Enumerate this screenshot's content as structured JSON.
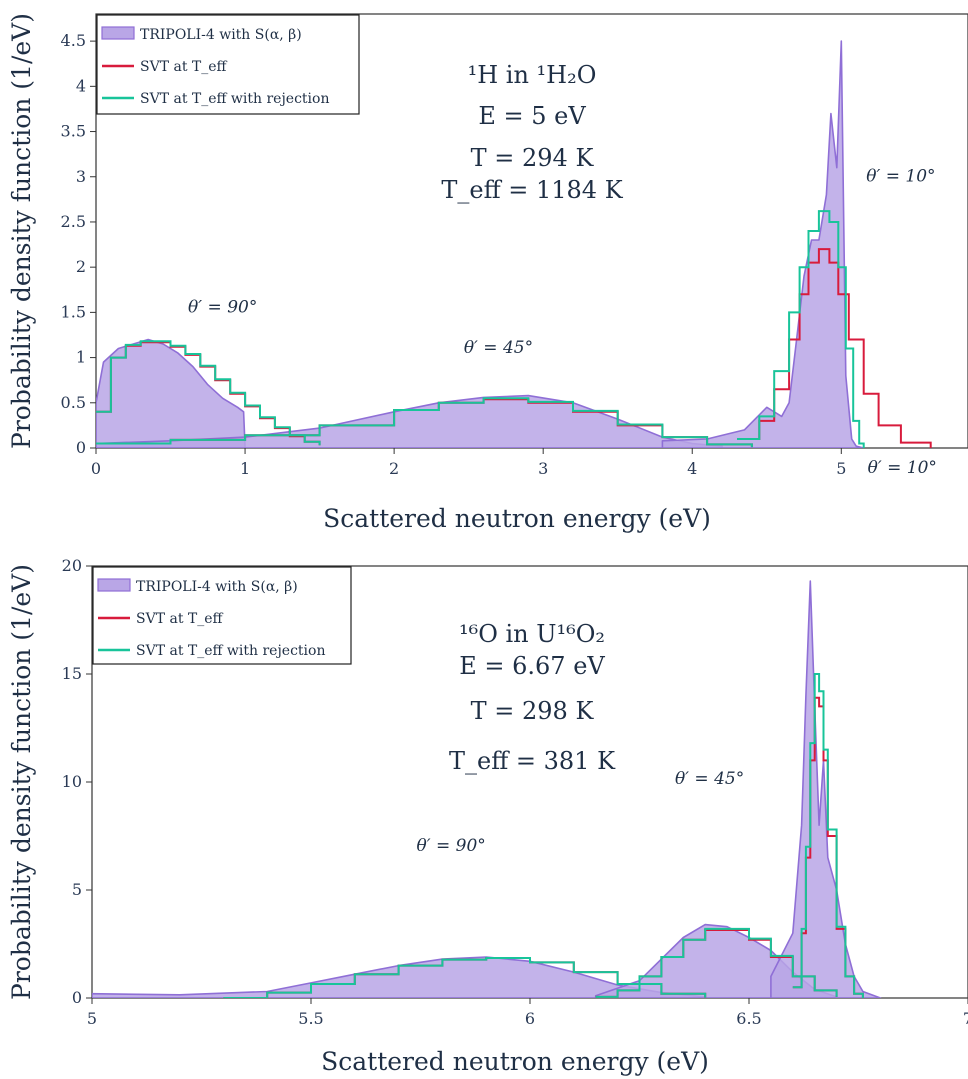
{
  "colors": {
    "tripoli_fill": "#b9a6e6",
    "tripoli_line": "#8f6fd6",
    "svt": "#d81b3c",
    "svt_rej": "#18c49a",
    "text": "#1f2f45"
  },
  "chart_data": [
    {
      "type": "area",
      "panel": "top",
      "xlabel": "Scattered neutron energy (eV)",
      "ylabel": "Probability density function (1/eV)",
      "xlim": [
        0,
        5.85
      ],
      "ylim": [
        0,
        4.8
      ],
      "xticks": [
        0,
        1,
        2,
        3,
        4,
        5
      ],
      "xtick_labels": [
        "0",
        "1",
        "2",
        "3",
        "4",
        "5"
      ],
      "yticks": [
        0,
        0.5,
        1,
        1.5,
        2,
        2.5,
        3,
        3.5,
        4,
        4.5
      ],
      "ytick_labels": [
        "0",
        "0.5",
        "1",
        "1.5",
        "2",
        "2.5",
        "3",
        "3.5",
        "4",
        "4.5"
      ],
      "grid": false,
      "legend_position": "top-left",
      "legend": [
        "TRIPOLI-4 with S(α, β)",
        "SVT at T_eff",
        "SVT at T_eff with rejection"
      ],
      "info_lines": [
        "¹H in ¹H₂O",
        "E = 5 eV",
        "T = 294 K",
        "T_eff = 1184 K"
      ],
      "annotations": [
        {
          "text": "θ′ = 90°",
          "x": 0.85,
          "y": 1.5
        },
        {
          "text": "θ′ = 45°",
          "x": 2.7,
          "y": 1.05
        },
        {
          "text": "θ′ = 10°",
          "x": 5.4,
          "y": 2.95
        }
      ],
      "series": [
        {
          "name": "TRIPOLI-4 with S(α, β)",
          "style": "filled",
          "components": [
            {
              "angle": "θ′ = 90°",
              "x": [
                0,
                0.05,
                0.15,
                0.25,
                0.35,
                0.45,
                0.55,
                0.65,
                0.75,
                0.85,
                0.95,
                0.99,
                1.0,
                1.02
              ],
              "y": [
                0.5,
                0.95,
                1.1,
                1.15,
                1.2,
                1.15,
                1.05,
                0.9,
                0.7,
                0.55,
                0.45,
                0.4,
                0.0,
                0.0
              ]
            },
            {
              "angle": "θ′ = 45°",
              "x": [
                0,
                0.5,
                1.0,
                1.5,
                2.0,
                2.3,
                2.6,
                2.9,
                3.2,
                3.5,
                3.8,
                4.0,
                4.2
              ],
              "y": [
                0.05,
                0.08,
                0.12,
                0.22,
                0.4,
                0.5,
                0.56,
                0.58,
                0.5,
                0.32,
                0.12,
                0.05,
                0.02
              ]
            },
            {
              "angle": "θ′ = 10°",
              "x": [
                3.8,
                4.1,
                4.35,
                4.5,
                4.6,
                4.65,
                4.7,
                4.75,
                4.8,
                4.85,
                4.9,
                4.93,
                4.97,
                5.0,
                5.03,
                5.07,
                5.1,
                5.15
              ],
              "y": [
                0.08,
                0.1,
                0.2,
                0.45,
                0.35,
                0.5,
                1.2,
                1.9,
                2.3,
                2.3,
                2.8,
                3.7,
                3.1,
                4.5,
                0.8,
                0.1,
                0.02,
                0.0
              ]
            }
          ]
        },
        {
          "name": "SVT at T_eff",
          "style": "step",
          "components": [
            {
              "angle": "θ′ = 90°",
              "x": [
                0,
                0.1,
                0.2,
                0.3,
                0.4,
                0.5,
                0.6,
                0.7,
                0.8,
                0.9,
                1.0,
                1.1,
                1.2,
                1.3,
                1.4,
                1.5
              ],
              "y": [
                0.4,
                1.0,
                1.13,
                1.17,
                1.17,
                1.12,
                1.03,
                0.9,
                0.75,
                0.6,
                0.46,
                0.33,
                0.22,
                0.13,
                0.07,
                0.03
              ]
            },
            {
              "angle": "θ′ = 45°",
              "x": [
                0,
                0.5,
                1.0,
                1.5,
                2.0,
                2.3,
                2.6,
                2.9,
                3.2,
                3.5,
                3.8,
                4.1,
                4.4
              ],
              "y": [
                0.05,
                0.09,
                0.14,
                0.25,
                0.42,
                0.5,
                0.54,
                0.5,
                0.4,
                0.25,
                0.12,
                0.04,
                0.01
              ]
            },
            {
              "angle": "θ′ = 10°",
              "x": [
                4.3,
                4.45,
                4.55,
                4.65,
                4.72,
                4.78,
                4.85,
                4.92,
                4.98,
                5.05,
                5.15,
                5.25,
                5.4,
                5.6
              ],
              "y": [
                0.1,
                0.3,
                0.65,
                1.2,
                1.7,
                2.05,
                2.2,
                2.05,
                1.7,
                1.2,
                0.6,
                0.25,
                0.06,
                0.0
              ]
            }
          ]
        },
        {
          "name": "SVT at T_eff with rejection",
          "style": "step",
          "components": [
            {
              "angle": "θ′ = 90°",
              "x": [
                0,
                0.1,
                0.2,
                0.3,
                0.4,
                0.5,
                0.6,
                0.7,
                0.8,
                0.9,
                1.0,
                1.1,
                1.2,
                1.3,
                1.4,
                1.5
              ],
              "y": [
                0.4,
                1.0,
                1.14,
                1.18,
                1.18,
                1.13,
                1.04,
                0.91,
                0.76,
                0.61,
                0.47,
                0.34,
                0.23,
                0.14,
                0.07,
                0.03
              ]
            },
            {
              "angle": "θ′ = 45°",
              "x": [
                0,
                0.5,
                1.0,
                1.5,
                2.0,
                2.3,
                2.6,
                2.9,
                3.2,
                3.5,
                3.8,
                4.1,
                4.4
              ],
              "y": [
                0.05,
                0.09,
                0.14,
                0.25,
                0.42,
                0.5,
                0.55,
                0.51,
                0.41,
                0.26,
                0.12,
                0.04,
                0.01
              ]
            },
            {
              "angle": "θ′ = 10°",
              "x": [
                4.3,
                4.45,
                4.55,
                4.65,
                4.72,
                4.78,
                4.85,
                4.92,
                4.98,
                5.03,
                5.08,
                5.12,
                5.15
              ],
              "y": [
                0.1,
                0.35,
                0.85,
                1.5,
                2.0,
                2.4,
                2.62,
                2.5,
                2.0,
                1.1,
                0.3,
                0.05,
                0.0
              ]
            }
          ]
        }
      ]
    },
    {
      "type": "area",
      "panel": "bottom",
      "xlabel": "Scattered neutron energy (eV)",
      "ylabel": "Probability density function (1/eV)",
      "xlim": [
        5,
        7
      ],
      "ylim": [
        0,
        20
      ],
      "xticks": [
        5,
        5.5,
        6,
        6.5,
        7
      ],
      "xtick_labels": [
        "5",
        "5.5",
        "6",
        "6.5",
        "7"
      ],
      "yticks": [
        0,
        5,
        10,
        15,
        20
      ],
      "ytick_labels": [
        "0",
        "5",
        "10",
        "15",
        "20"
      ],
      "grid": false,
      "legend_position": "top-left",
      "legend": [
        "TRIPOLI-4 with S(α, β)",
        "SVT at T_eff",
        "SVT at T_eff with rejection"
      ],
      "info_lines": [
        "¹⁶O in U¹⁶O₂",
        "E = 6.67 eV",
        "T = 298 K",
        "T_eff = 381 K"
      ],
      "annotations": [
        {
          "text": "θ′ = 90°",
          "x": 5.82,
          "y": 6.8
        },
        {
          "text": "θ′ = 45°",
          "x": 6.41,
          "y": 9.9
        },
        {
          "text": "θ′ = 10°",
          "x": 6.85,
          "y": 24.3
        }
      ],
      "series": [
        {
          "name": "TRIPOLI-4 with S(α, β)",
          "style": "filled",
          "components": [
            {
              "angle": "θ′ = 90°",
              "x": [
                5.0,
                5.2,
                5.4,
                5.5,
                5.6,
                5.7,
                5.8,
                5.9,
                6.0,
                6.1,
                6.2,
                6.3,
                6.4
              ],
              "y": [
                0.2,
                0.15,
                0.3,
                0.7,
                1.1,
                1.5,
                1.8,
                1.9,
                1.7,
                1.2,
                0.6,
                0.25,
                0.05
              ]
            },
            {
              "angle": "θ′ = 45°",
              "x": [
                6.15,
                6.25,
                6.3,
                6.35,
                6.4,
                6.45,
                6.5,
                6.55,
                6.6,
                6.65,
                6.7
              ],
              "y": [
                0.1,
                0.8,
                1.8,
                2.8,
                3.4,
                3.3,
                2.8,
                2.2,
                1.2,
                0.4,
                0.05
              ]
            },
            {
              "angle": "θ′ = 10°",
              "x": [
                6.55,
                6.6,
                6.62,
                6.63,
                6.64,
                6.65,
                6.66,
                6.67,
                6.68,
                6.7,
                6.72,
                6.74,
                6.76,
                6.8
              ],
              "y": [
                1.0,
                3.0,
                8.0,
                14.0,
                19.3,
                13.5,
                8.0,
                11.0,
                6.5,
                5.0,
                2.5,
                1.0,
                0.3,
                0.0
              ]
            }
          ]
        },
        {
          "name": "SVT at T_eff",
          "style": "step",
          "components": [
            {
              "angle": "θ′ = 90°",
              "x": [
                5.3,
                5.4,
                5.5,
                5.6,
                5.7,
                5.8,
                5.9,
                6.0,
                6.1,
                6.2,
                6.3,
                6.4
              ],
              "y": [
                0.0,
                0.25,
                0.65,
                1.1,
                1.5,
                1.78,
                1.85,
                1.65,
                1.2,
                0.65,
                0.2,
                0.02
              ]
            },
            {
              "angle": "θ′ = 45°",
              "x": [
                6.15,
                6.2,
                6.25,
                6.3,
                6.35,
                6.4,
                6.45,
                6.5,
                6.55,
                6.6,
                6.65,
                6.7
              ],
              "y": [
                0.05,
                0.35,
                1.0,
                1.9,
                2.7,
                3.15,
                3.15,
                2.7,
                1.9,
                1.0,
                0.35,
                0.05
              ]
            },
            {
              "angle": "θ′ = 10°",
              "x": [
                6.6,
                6.62,
                6.63,
                6.64,
                6.65,
                6.66,
                6.67,
                6.68,
                6.7,
                6.72,
                6.74,
                6.76
              ],
              "y": [
                0.5,
                3.0,
                6.5,
                11.0,
                13.9,
                13.5,
                11.0,
                7.5,
                3.2,
                1.0,
                0.2,
                0.0
              ]
            }
          ]
        },
        {
          "name": "SVT at T_eff with rejection",
          "style": "step",
          "components": [
            {
              "angle": "θ′ = 90°",
              "x": [
                5.3,
                5.4,
                5.5,
                5.6,
                5.7,
                5.8,
                5.9,
                6.0,
                6.1,
                6.2,
                6.3,
                6.4
              ],
              "y": [
                0.0,
                0.25,
                0.65,
                1.1,
                1.5,
                1.78,
                1.85,
                1.65,
                1.2,
                0.65,
                0.2,
                0.02
              ]
            },
            {
              "angle": "θ′ = 45°",
              "x": [
                6.15,
                6.2,
                6.25,
                6.3,
                6.35,
                6.4,
                6.45,
                6.5,
                6.55,
                6.6,
                6.65,
                6.7
              ],
              "y": [
                0.05,
                0.35,
                1.0,
                1.9,
                2.7,
                3.2,
                3.2,
                2.75,
                1.95,
                1.0,
                0.35,
                0.05
              ]
            },
            {
              "angle": "θ′ = 10°",
              "x": [
                6.6,
                6.62,
                6.63,
                6.64,
                6.65,
                6.66,
                6.67,
                6.68,
                6.7,
                6.72,
                6.74,
                6.76
              ],
              "y": [
                0.5,
                3.2,
                7.0,
                11.8,
                15.0,
                14.2,
                11.5,
                7.8,
                3.3,
                1.0,
                0.2,
                0.0
              ]
            }
          ]
        }
      ]
    }
  ]
}
